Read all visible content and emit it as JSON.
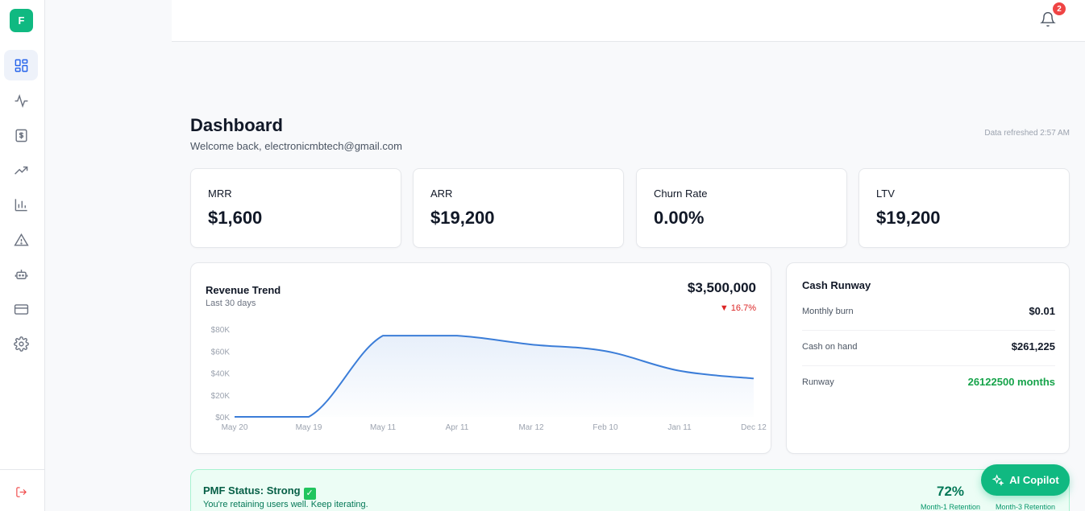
{
  "app": {
    "logo_letter": "F"
  },
  "nav": {
    "items": [
      {
        "name": "dashboard",
        "icon": "grid-icon",
        "active": true
      },
      {
        "name": "activity",
        "icon": "pulse-icon",
        "active": false
      },
      {
        "name": "billing",
        "icon": "dollar-document-icon",
        "active": false
      },
      {
        "name": "growth",
        "icon": "trending-up-icon",
        "active": false
      },
      {
        "name": "analytics",
        "icon": "bar-chart-icon",
        "active": false
      },
      {
        "name": "alerts",
        "icon": "warning-icon",
        "active": false
      },
      {
        "name": "ai-bot",
        "icon": "robot-icon",
        "active": false
      },
      {
        "name": "payments",
        "icon": "credit-card-icon",
        "active": false
      },
      {
        "name": "settings",
        "icon": "gear-icon",
        "active": false
      }
    ],
    "logout_icon": "logout-icon"
  },
  "topbar": {
    "notification_count": "2"
  },
  "header": {
    "title": "Dashboard",
    "subtitle": "Welcome back, electronicmbtech@gmail.com",
    "refreshed": "Data refreshed 2:57 AM"
  },
  "kpis": [
    {
      "label": "MRR",
      "value": "$1,600"
    },
    {
      "label": "ARR",
      "value": "$19,200"
    },
    {
      "label": "Churn Rate",
      "value": "0.00%"
    },
    {
      "label": "LTV",
      "value": "$19,200"
    }
  ],
  "revenue": {
    "title": "Revenue Trend",
    "subtitle": "Last 30 days",
    "total": "$3,500,000",
    "change": "▼ 16.7%",
    "change_color": "#dc2626"
  },
  "chart_data": {
    "type": "area",
    "title": "Revenue Trend",
    "x": [
      "May 20",
      "May 19",
      "May 11",
      "Apr 11",
      "Mar 12",
      "Feb 10",
      "Jan 11",
      "Dec 12"
    ],
    "y_ticks": [
      "$0K",
      "$20K",
      "$40K",
      "$60K",
      "$80K"
    ],
    "ylim": [
      0,
      80000
    ],
    "series": [
      {
        "values": [
          0,
          0,
          74000,
          74000,
          66000,
          60000,
          42000,
          35000
        ]
      }
    ],
    "line_color": "#3b7dd8",
    "grid": false
  },
  "runway": {
    "title": "Cash Runway",
    "rows": [
      {
        "label": "Monthly burn",
        "value": "$0.01",
        "highlight": false
      },
      {
        "label": "Cash on hand",
        "value": "$261,225",
        "highlight": false
      },
      {
        "label": "Runway",
        "value": "26122500 months",
        "highlight": true
      }
    ]
  },
  "pmf": {
    "title": "PMF Status: Strong",
    "subtitle": "You're retaining users well. Keep iterating.",
    "retention": [
      {
        "value": "72%",
        "label": "Month-1 Retention"
      },
      {
        "value": "",
        "label": "Month-3 Retention"
      }
    ]
  },
  "copilot": {
    "label": "AI Copilot"
  },
  "colors": {
    "accent": "#10b981",
    "danger": "#ef4444",
    "chart_line": "#3b7dd8"
  }
}
